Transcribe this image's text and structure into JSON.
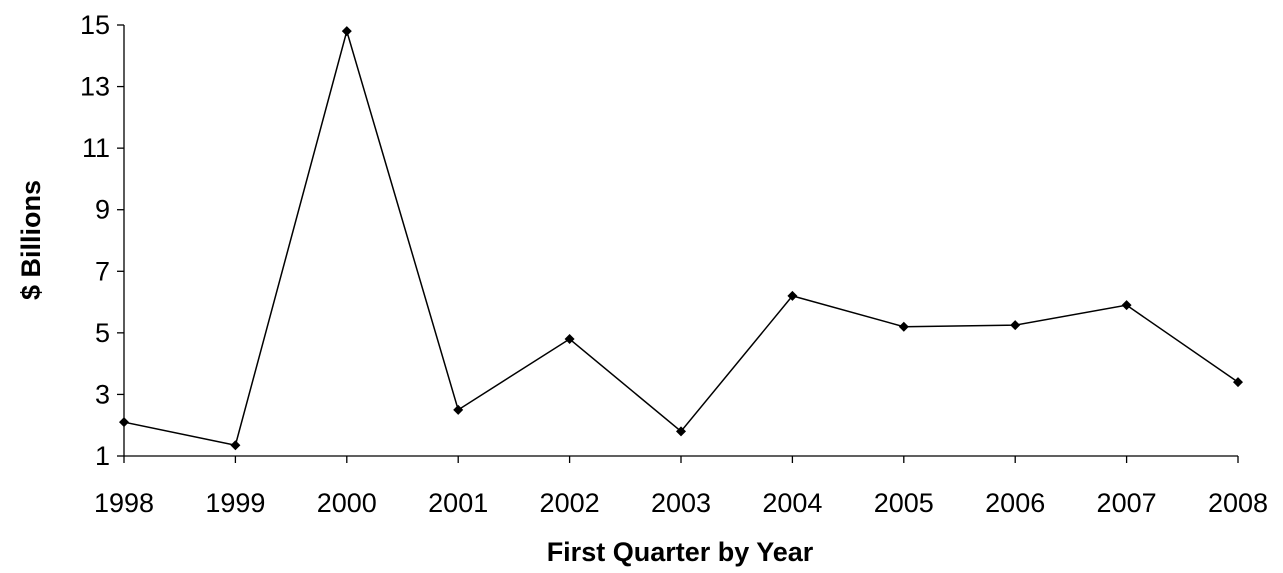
{
  "chart_data": {
    "type": "line",
    "title": "",
    "xlabel": "First Quarter by Year",
    "ylabel": "$ Billions",
    "categories": [
      "1998",
      "1999",
      "2000",
      "2001",
      "2002",
      "2003",
      "2004",
      "2005",
      "2006",
      "2007",
      "2008"
    ],
    "series": [
      {
        "name": "",
        "values": [
          2.1,
          1.35,
          14.8,
          2.5,
          4.8,
          1.8,
          6.2,
          5.2,
          5.25,
          5.9,
          3.4
        ],
        "color": "#000000",
        "marker": "diamond"
      }
    ],
    "ylim": [
      1,
      15
    ],
    "yticks": [
      "1",
      "3",
      "5",
      "7",
      "9",
      "11",
      "13",
      "15"
    ],
    "grid": false,
    "legend": "none"
  }
}
